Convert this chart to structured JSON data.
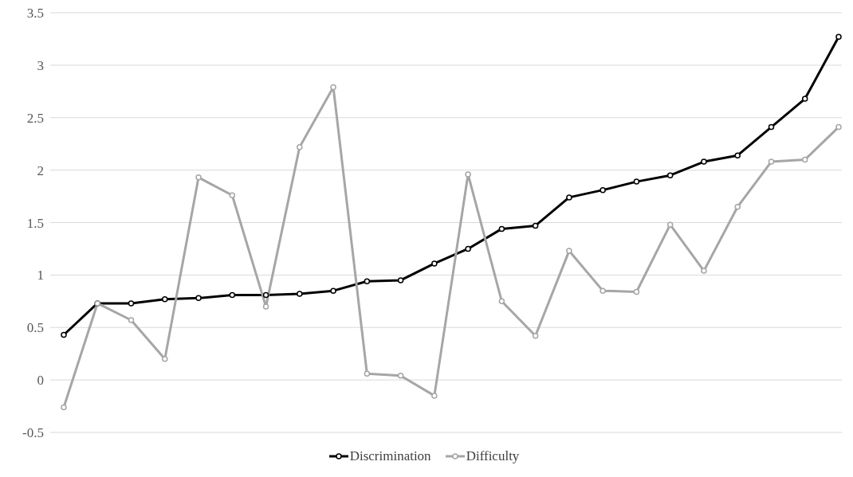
{
  "chart_data": {
    "type": "line",
    "categories": [
      null,
      null,
      null,
      null,
      null,
      null,
      null,
      null,
      null,
      null,
      null,
      null,
      null,
      null,
      null,
      null,
      null,
      null,
      null,
      null,
      null,
      null,
      null,
      null
    ],
    "series": [
      {
        "name": "Discrimination",
        "color": "#000000",
        "values": [
          0.43,
          0.73,
          0.73,
          0.77,
          0.78,
          0.81,
          0.81,
          0.82,
          0.85,
          0.94,
          0.95,
          1.11,
          1.25,
          1.44,
          1.47,
          1.74,
          1.81,
          1.89,
          1.95,
          2.08,
          2.14,
          2.41,
          2.68,
          3.27
        ]
      },
      {
        "name": "Difficulty",
        "color": "#a6a6a6",
        "values": [
          -0.26,
          0.73,
          0.57,
          0.2,
          1.93,
          1.76,
          0.7,
          2.22,
          2.79,
          0.06,
          0.04,
          -0.15,
          1.96,
          0.75,
          0.42,
          1.23,
          0.85,
          0.84,
          1.48,
          1.04,
          1.65,
          2.08,
          2.1,
          2.41
        ]
      }
    ],
    "ylim": [
      -0.5,
      3.5
    ],
    "yticks": [
      -0.5,
      0,
      0.5,
      1,
      1.5,
      2,
      2.5,
      3,
      3.5
    ],
    "grid": "y",
    "legend": "bottom",
    "marker": "circle",
    "line_style": "solid"
  }
}
